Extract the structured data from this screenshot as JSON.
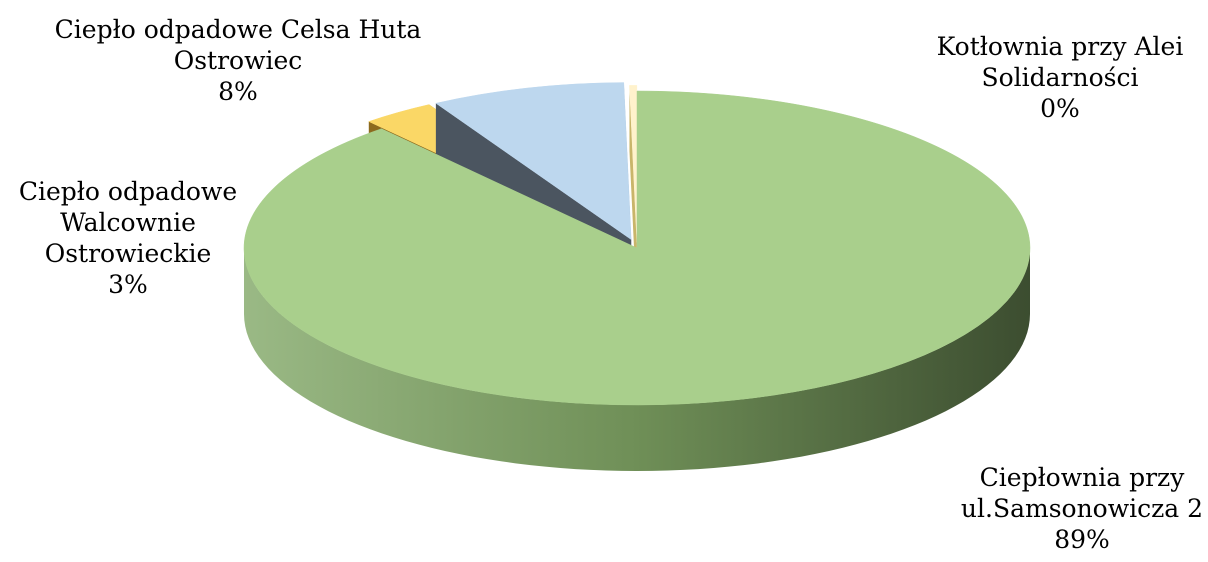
{
  "chart_data": {
    "type": "pie",
    "style": "3d exploded pie",
    "slices": [
      {
        "name": "Ciepłownia przy ul.Samsonowicza 2",
        "label_lines": [
          "Ciepłownia przy",
          "ul.Samsonowicza 2"
        ],
        "value": 89,
        "value_label": "89%",
        "color": "#a9cf8c",
        "side_color": "#6a8a52"
      },
      {
        "name": "Ciepło odpadowe Walcownie Ostrowieckie",
        "label_lines": [
          "Ciepło odpadowe",
          "Walcownie",
          "Ostrowieckie"
        ],
        "value": 3,
        "value_label": "3%",
        "color": "#fad766",
        "side_color": "#8c6a1e"
      },
      {
        "name": "Ciepło odpadowe Celsa Huta Ostrowiec",
        "label_lines": [
          "Ciepło odpadowe Celsa Huta",
          "Ostrowiec"
        ],
        "value": 8,
        "value_label": "8%",
        "color": "#bdd7ee",
        "side_color": "#4b5560"
      },
      {
        "name": "Kotłownia przy Alei Solidarności",
        "label_lines": [
          "Kotłownia przy Alei",
          "Solidarności"
        ],
        "value": 0.3,
        "value_label": "0%",
        "color": "#fff2cc",
        "side_color": "#c9b56a"
      }
    ],
    "legend": "none"
  }
}
